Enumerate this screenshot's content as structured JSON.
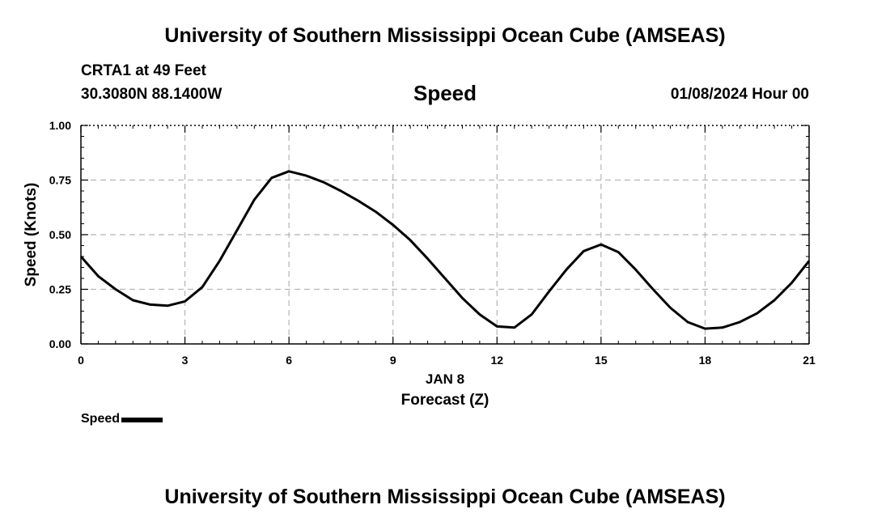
{
  "header": {
    "title": "University of Southern Mississippi Ocean Cube (AMSEAS)",
    "station": "CRTA1 at 49 Feet",
    "coords": "30.3080N  88.1400W",
    "plot_title": "Speed",
    "date": "01/08/2024 Hour 00"
  },
  "footer": {
    "title": "University of Southern Mississippi Ocean Cube (AMSEAS)"
  },
  "legend": {
    "label": "Speed",
    "color": "#000000"
  },
  "chart_data": {
    "type": "line",
    "title": "Speed",
    "xlabel": "Forecast (Z)",
    "x_sublabel": "JAN 8",
    "ylabel": "Speed (Knots)",
    "xlim": [
      0,
      21
    ],
    "ylim": [
      0,
      1
    ],
    "xticks": [
      0,
      3,
      6,
      9,
      12,
      15,
      18,
      21
    ],
    "xtick_labels": [
      "0",
      "3",
      "6",
      "9",
      "12",
      "15",
      "18",
      "21"
    ],
    "yticks": [
      0,
      0.25,
      0.5,
      0.75,
      1.0
    ],
    "ytick_labels": [
      "0.00",
      "0.25",
      "0.50",
      "0.75",
      "1.00"
    ],
    "grid": true,
    "series": [
      {
        "name": "Speed",
        "color": "#000000",
        "x": [
          0,
          0.5,
          1,
          1.5,
          2,
          2.5,
          3,
          3.5,
          4,
          4.5,
          5,
          5.5,
          6,
          6.5,
          7,
          7.5,
          8,
          8.5,
          9,
          9.5,
          10,
          10.5,
          11,
          11.5,
          12,
          12.5,
          13,
          13.5,
          14,
          14.5,
          15,
          15.5,
          16,
          16.5,
          17,
          17.5,
          18,
          18.5,
          19,
          19.5,
          20,
          20.5,
          21
        ],
        "values": [
          0.4,
          0.31,
          0.25,
          0.2,
          0.18,
          0.175,
          0.195,
          0.26,
          0.38,
          0.52,
          0.66,
          0.76,
          0.79,
          0.77,
          0.74,
          0.7,
          0.655,
          0.605,
          0.545,
          0.475,
          0.39,
          0.3,
          0.21,
          0.135,
          0.08,
          0.075,
          0.135,
          0.24,
          0.34,
          0.425,
          0.455,
          0.42,
          0.34,
          0.25,
          0.165,
          0.1,
          0.07,
          0.075,
          0.1,
          0.14,
          0.2,
          0.28,
          0.38
        ]
      }
    ]
  }
}
